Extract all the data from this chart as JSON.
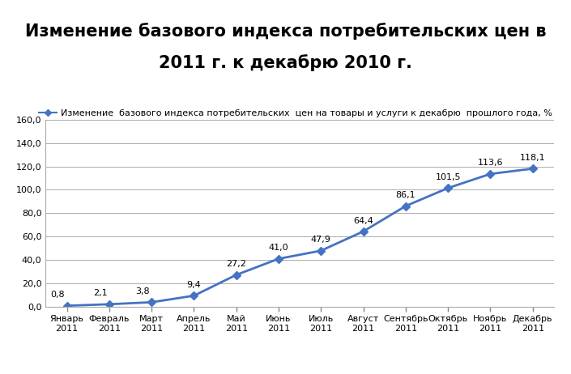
{
  "title_line1": "Изменение базового индекса потребительских цен в",
  "title_line2": "2011 г. к декабрю 2010 г.",
  "legend_label": "Изменение  базового индекса потребительских  цен на товары и услуги к декабрю  прошлого года, %",
  "categories": [
    "Январь\n2011",
    "Февраль\n2011",
    "Март\n2011",
    "Апрель\n2011",
    "Май\n2011",
    "Июнь\n2011",
    "Июль\n2011",
    "Август\n2011",
    "Сентябрь\n2011",
    "Октябрь\n2011",
    "Ноябрь\n2011",
    "Декабрь\n2011"
  ],
  "values": [
    0.8,
    2.1,
    3.8,
    9.4,
    27.2,
    41.0,
    47.9,
    64.4,
    86.1,
    101.5,
    113.6,
    118.1
  ],
  "line_color": "#4472C4",
  "marker_style": "D",
  "marker_size": 5,
  "ylim": [
    0,
    160
  ],
  "yticks": [
    0,
    20,
    40,
    60,
    80,
    100,
    120,
    140,
    160
  ],
  "ytick_labels": [
    "0,0",
    "20,0",
    "40,0",
    "60,0",
    "80,0",
    "100,0",
    "120,0",
    "140,0",
    "160,0"
  ],
  "grid_color": "#AAAAAA",
  "background_color": "#FFFFFF",
  "title_fontsize": 15,
  "tick_fontsize": 8,
  "legend_fontsize": 8,
  "annotation_fontsize": 8
}
